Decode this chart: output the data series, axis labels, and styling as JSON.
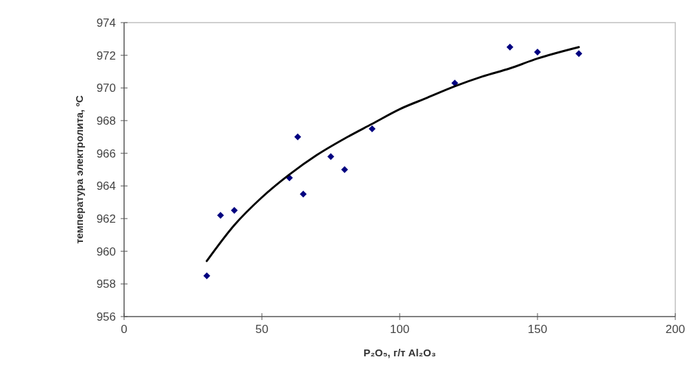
{
  "chart_data": {
    "type": "scatter",
    "xlabel": "P₂O₅, г/т Al₂O₃",
    "ylabel": "температура электролита, ºC",
    "xlim": [
      0,
      200
    ],
    "xticks": [
      0,
      50,
      100,
      150,
      200
    ],
    "ylim": [
      956,
      974
    ],
    "yticks": [
      956,
      958,
      960,
      962,
      964,
      966,
      968,
      970,
      972,
      974
    ],
    "grid": false,
    "marker": "diamond",
    "series": [
      {
        "color": "#000080",
        "x": [
          30,
          35,
          40,
          60,
          63,
          65,
          75,
          80,
          90,
          120,
          140,
          150,
          165
        ],
        "values": [
          958.5,
          962.2,
          962.5,
          964.5,
          967,
          963.5,
          965.8,
          965,
          967.5,
          970.3,
          972.5,
          972.2,
          972.1
        ]
      },
      {
        "type": "line",
        "color": "#000000",
        "marker": "none",
        "line_style": "solid",
        "x": [
          30,
          40,
          50,
          60,
          70,
          80,
          90,
          100,
          110,
          120,
          130,
          140,
          150,
          165
        ],
        "values": [
          959.4,
          961.6,
          963.3,
          964.7,
          965.9,
          966.9,
          967.8,
          968.7,
          969.4,
          970.1,
          970.7,
          971.2,
          971.8,
          972.5
        ]
      }
    ]
  }
}
